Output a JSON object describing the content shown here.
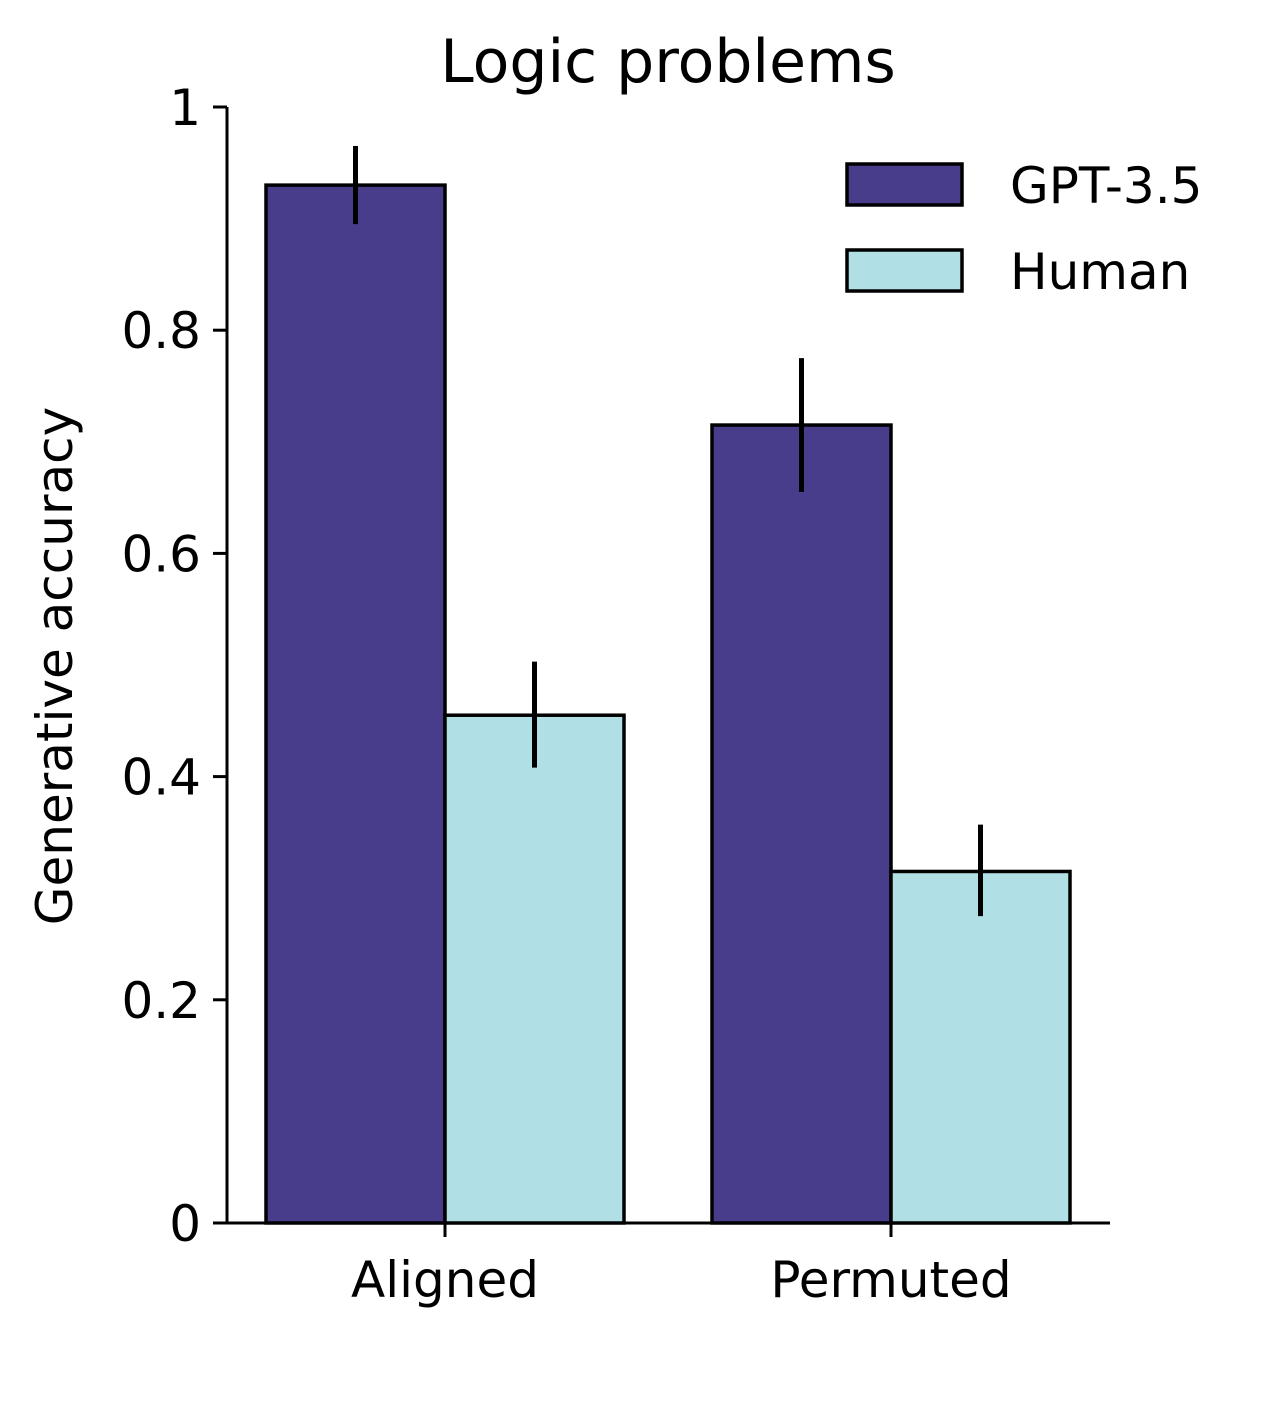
{
  "chart_data": {
    "type": "bar",
    "title": "Logic problems",
    "xlabel": "",
    "ylabel": "Generative accuracy",
    "categories": [
      "Aligned",
      "Permuted"
    ],
    "ylim": [
      0,
      1
    ],
    "yticks": [
      0,
      0.2,
      0.4,
      0.6,
      0.8,
      1
    ],
    "ytick_labels": [
      "0",
      "0.2",
      "0.4",
      "0.6",
      "0.8",
      "1"
    ],
    "grid": false,
    "legend_position": "top-right",
    "series": [
      {
        "name": "GPT-3.5",
        "color": "#483d8b",
        "values": [
          0.93,
          0.715
        ],
        "error_low": [
          0.895,
          0.655
        ],
        "error_high": [
          0.965,
          0.775
        ]
      },
      {
        "name": "Human",
        "color": "#b0e0e6",
        "values": [
          0.455,
          0.315
        ],
        "error_low": [
          0.408,
          0.275
        ],
        "error_high": [
          0.503,
          0.357
        ]
      }
    ]
  }
}
